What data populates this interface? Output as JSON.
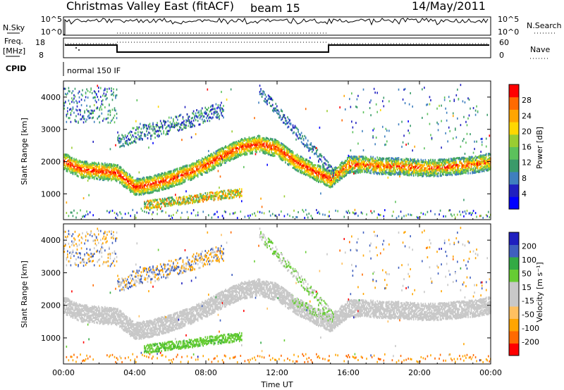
{
  "header": {
    "station": "Christmas Valley East (fitACF)",
    "beam": "beam 15",
    "date": "14/May/2011"
  },
  "top_panels": {
    "nsky_label": "N.Sky",
    "nsky_ticks": [
      "10^5",
      "10^0"
    ],
    "nsearch_label": "N.Search",
    "nsearch_ticks": [
      "10^5",
      "10^0"
    ],
    "freq_label_line1": "Freq.",
    "freq_label_line2": "[MHz]",
    "freq_ticks": [
      "18",
      "8"
    ],
    "nave_label": "Nave",
    "nave_ticks": [
      "60",
      "0"
    ],
    "cpid_label": "CPID",
    "cpid_value": "normal 150 IF"
  },
  "colors": {
    "power_scale": [
      "#0000ff",
      "#2020c0",
      "#3f7fbf",
      "#3a9a6a",
      "#5cc15c",
      "#9acd32",
      "#ffd700",
      "#ffa500",
      "#ff6a00",
      "#ff0000"
    ],
    "velocity_scale": [
      "#ff0000",
      "#ff6a00",
      "#ffa500",
      "#ffc060",
      "#c8c8c8",
      "#c8c8c8",
      "#66cc33",
      "#33aa44",
      "#3f5fbf",
      "#1f1fbf"
    ]
  },
  "chart_data": [
    {
      "type": "heatmap",
      "name": "power-panel",
      "ylabel": "Slant Range [km]",
      "y_ticks": [
        "1000",
        "2000",
        "3000",
        "4000"
      ],
      "ylim": [
        200,
        4500
      ],
      "colorbar_label": "Power [dB]",
      "colorbar_ticks": [
        "4",
        "8",
        "12",
        "16",
        "20",
        "24",
        "28"
      ],
      "colorbar_range": [
        0,
        30
      ],
      "echo_band_center_km": {
        "x_hours": [
          0,
          1,
          2,
          3,
          4,
          5,
          6,
          7,
          8,
          9,
          10,
          11,
          12,
          13,
          14,
          15,
          16,
          17,
          18,
          19,
          20,
          21,
          22,
          23,
          24
        ],
        "values": [
          2000,
          1750,
          1700,
          1650,
          1200,
          1300,
          1450,
          1650,
          1900,
          2200,
          2450,
          2550,
          2400,
          2000,
          1700,
          1450,
          1900,
          1900,
          1850,
          1850,
          1800,
          1800,
          1850,
          1900,
          2000
        ]
      }
    },
    {
      "type": "heatmap",
      "name": "velocity-panel",
      "ylabel": "Slant Range [km]",
      "xlabel": "Time UT",
      "x_ticks": [
        "00:00",
        "04:00",
        "08:00",
        "12:00",
        "16:00",
        "20:00",
        "00:00"
      ],
      "xlim": [
        0,
        24
      ],
      "y_ticks": [
        "1000",
        "2000",
        "3000",
        "4000"
      ],
      "ylim": [
        200,
        4500
      ],
      "colorbar_label": "Velocity [m s⁻¹]",
      "colorbar_ticks": [
        "200",
        "100",
        "50",
        "15",
        "-15",
        "-50",
        "-100",
        "-200"
      ],
      "colorbar_range": [
        -250,
        250
      ]
    }
  ]
}
